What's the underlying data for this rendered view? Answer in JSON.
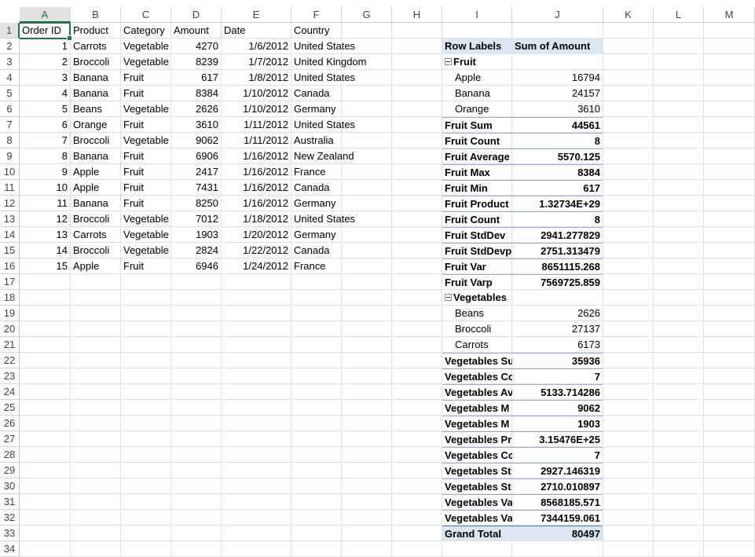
{
  "columns": [
    "A",
    "B",
    "C",
    "D",
    "E",
    "F",
    "G",
    "H",
    "I",
    "J",
    "K",
    "L",
    "M"
  ],
  "row_count": 34,
  "active_cell": {
    "col": "A",
    "row": 1
  },
  "table": {
    "headers": [
      "Order ID",
      "Product",
      "Category",
      "Amount",
      "Date",
      "Country"
    ],
    "rows": [
      [
        "1",
        "Carrots",
        "Vegetable",
        "4270",
        "1/6/2012",
        "United States"
      ],
      [
        "2",
        "Broccoli",
        "Vegetable",
        "8239",
        "1/7/2012",
        "United Kingdom"
      ],
      [
        "3",
        "Banana",
        "Fruit",
        "617",
        "1/8/2012",
        "United States"
      ],
      [
        "4",
        "Banana",
        "Fruit",
        "8384",
        "1/10/2012",
        "Canada"
      ],
      [
        "5",
        "Beans",
        "Vegetable",
        "2626",
        "1/10/2012",
        "Germany"
      ],
      [
        "6",
        "Orange",
        "Fruit",
        "3610",
        "1/11/2012",
        "United States"
      ],
      [
        "7",
        "Broccoli",
        "Vegetable",
        "9062",
        "1/11/2012",
        "Australia"
      ],
      [
        "8",
        "Banana",
        "Fruit",
        "6906",
        "1/16/2012",
        "New Zealand"
      ],
      [
        "9",
        "Apple",
        "Fruit",
        "2417",
        "1/16/2012",
        "France"
      ],
      [
        "10",
        "Apple",
        "Fruit",
        "7431",
        "1/16/2012",
        "Canada"
      ],
      [
        "11",
        "Banana",
        "Fruit",
        "8250",
        "1/16/2012",
        "Germany"
      ],
      [
        "12",
        "Broccoli",
        "Vegetable",
        "7012",
        "1/18/2012",
        "United States"
      ],
      [
        "13",
        "Carrots",
        "Vegetable",
        "1903",
        "1/20/2012",
        "Germany"
      ],
      [
        "14",
        "Broccoli",
        "Vegetable",
        "2824",
        "1/22/2012",
        "Canada"
      ],
      [
        "15",
        "Apple",
        "Fruit",
        "6946",
        "1/24/2012",
        "France"
      ]
    ]
  },
  "pivot": {
    "header": {
      "labels": "Row Labels",
      "values": "Sum of Amount"
    },
    "rows": [
      {
        "label": "Fruit",
        "value": "",
        "kind": "group"
      },
      {
        "label": "Apple",
        "value": "16794",
        "kind": "item"
      },
      {
        "label": "Banana",
        "value": "24157",
        "kind": "item"
      },
      {
        "label": "Orange",
        "value": "3610",
        "kind": "item"
      },
      {
        "label": "Fruit Sum",
        "value": "44561",
        "kind": "subtotal"
      },
      {
        "label": "Fruit Count",
        "value": "8",
        "kind": "subtotal"
      },
      {
        "label": "Fruit Average",
        "value": "5570.125",
        "kind": "subtotal"
      },
      {
        "label": "Fruit Max",
        "value": "8384",
        "kind": "subtotal"
      },
      {
        "label": "Fruit Min",
        "value": "617",
        "kind": "subtotal"
      },
      {
        "label": "Fruit Product",
        "value": "1.32734E+29",
        "kind": "subtotal"
      },
      {
        "label": "Fruit Count",
        "value": "8",
        "kind": "subtotal"
      },
      {
        "label": "Fruit StdDev",
        "value": "2941.277829",
        "kind": "subtotal"
      },
      {
        "label": "Fruit StdDevp",
        "value": "2751.313479",
        "kind": "subtotal"
      },
      {
        "label": "Fruit Var",
        "value": "8651115.268",
        "kind": "subtotal"
      },
      {
        "label": "Fruit Varp",
        "value": "7569725.859",
        "kind": "subtotal"
      },
      {
        "label": "Vegetables",
        "value": "",
        "kind": "group"
      },
      {
        "label": "Beans",
        "value": "2626",
        "kind": "item"
      },
      {
        "label": "Broccoli",
        "value": "27137",
        "kind": "item"
      },
      {
        "label": "Carrots",
        "value": "6173",
        "kind": "item"
      },
      {
        "label": "Vegetables Su",
        "value": "35936",
        "kind": "subtotal"
      },
      {
        "label": "Vegetables Cc",
        "value": "7",
        "kind": "subtotal"
      },
      {
        "label": "Vegetables Av",
        "value": "5133.714286",
        "kind": "subtotal"
      },
      {
        "label": "Vegetables M",
        "value": "9062",
        "kind": "subtotal"
      },
      {
        "label": "Vegetables M",
        "value": "1903",
        "kind": "subtotal"
      },
      {
        "label": "Vegetables Pr",
        "value": "3.15476E+25",
        "kind": "subtotal"
      },
      {
        "label": "Vegetables Cc",
        "value": "7",
        "kind": "subtotal"
      },
      {
        "label": "Vegetables St",
        "value": "2927.146319",
        "kind": "subtotal"
      },
      {
        "label": "Vegetables St",
        "value": "2710.010897",
        "kind": "subtotal"
      },
      {
        "label": "Vegetables Va",
        "value": "8568185.571",
        "kind": "subtotal"
      },
      {
        "label": "Vegetables Va",
        "value": "7344159.061",
        "kind": "subtotal"
      },
      {
        "label": "Grand Total",
        "value": "80497",
        "kind": "grand"
      }
    ]
  },
  "colors": {
    "accent": "#217346",
    "pivot_header": "#dce6f1",
    "pivot_line": "#95b3d7"
  }
}
